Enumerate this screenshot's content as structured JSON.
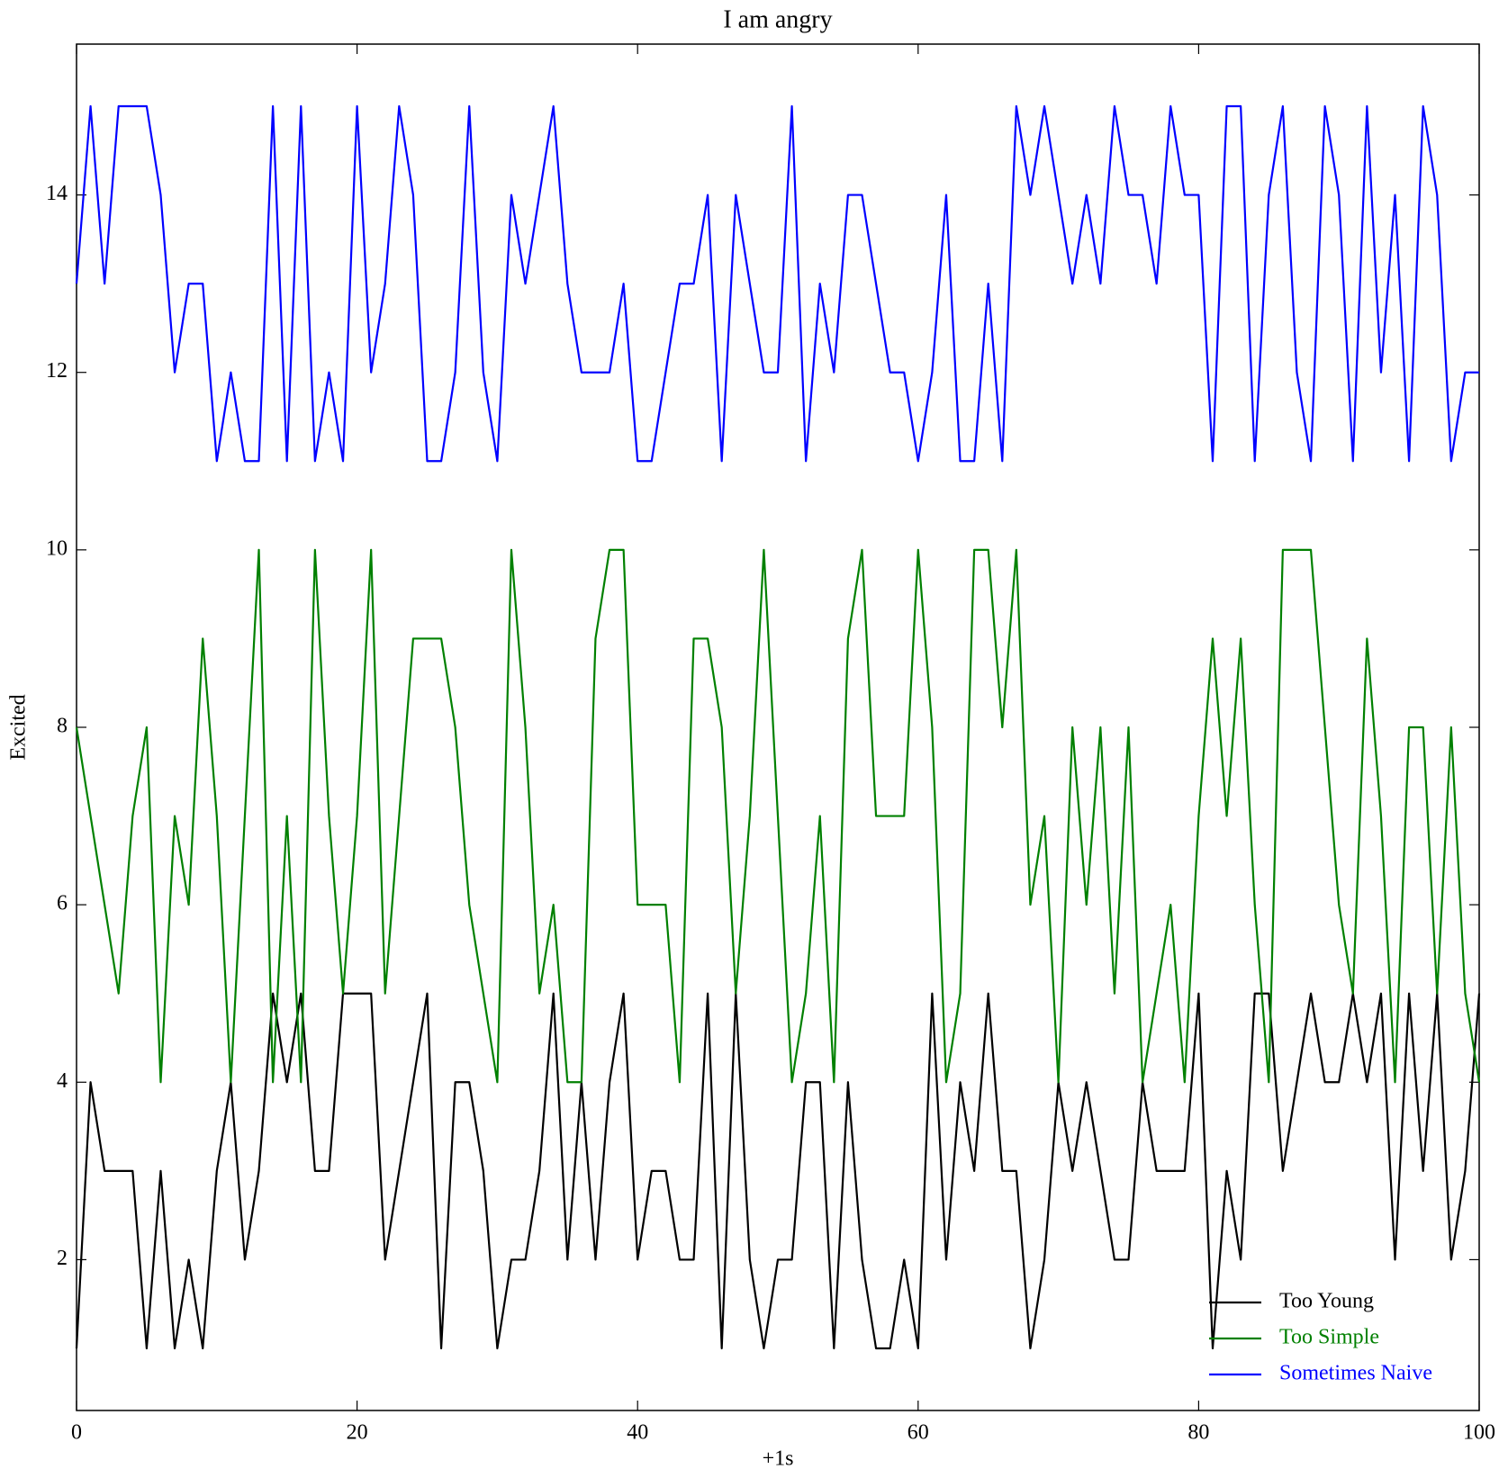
{
  "chart_data": {
    "type": "line",
    "title": "I am angry",
    "x_label": "+1s",
    "y_label": "Excited",
    "x": [
      0,
      1,
      2,
      3,
      4,
      5,
      6,
      7,
      8,
      9,
      10,
      11,
      12,
      13,
      14,
      15,
      16,
      17,
      18,
      19,
      20,
      21,
      22,
      23,
      24,
      25,
      26,
      27,
      28,
      29,
      30,
      31,
      32,
      33,
      34,
      35,
      36,
      37,
      38,
      39,
      40,
      41,
      42,
      43,
      44,
      45,
      46,
      47,
      48,
      49,
      50,
      51,
      52,
      53,
      54,
      55,
      56,
      57,
      58,
      59,
      60,
      61,
      62,
      63,
      64,
      65,
      66,
      67,
      68,
      69,
      70,
      71,
      72,
      73,
      74,
      75,
      76,
      77,
      78,
      79,
      80,
      81,
      82,
      83,
      84,
      85,
      86,
      87,
      88,
      89,
      90,
      91,
      92,
      93,
      94,
      95,
      96,
      97,
      98,
      99,
      100
    ],
    "series": [
      {
        "name": "Too Young",
        "color": "#000000",
        "values": [
          1,
          4,
          3,
          3,
          3,
          1,
          3,
          1,
          2,
          1,
          3,
          4,
          2,
          3,
          5,
          4,
          5,
          3,
          3,
          5,
          5,
          5,
          2,
          3,
          4,
          5,
          1,
          4,
          4,
          3,
          1,
          2,
          2,
          3,
          5,
          2,
          4,
          2,
          4,
          5,
          2,
          3,
          3,
          2,
          2,
          5,
          1,
          5,
          2,
          1,
          2,
          2,
          4,
          4,
          1,
          4,
          2,
          1,
          1,
          2,
          1,
          5,
          2,
          4,
          3,
          5,
          3,
          3,
          1,
          2,
          4,
          3,
          4,
          3,
          2,
          2,
          4,
          3,
          3,
          3,
          5,
          1,
          3,
          2,
          5,
          5,
          3,
          4,
          5,
          4,
          4,
          5,
          4,
          5,
          2,
          5,
          3,
          5,
          2,
          3,
          5
        ]
      },
      {
        "name": "Too Simple",
        "color": "#008000",
        "values": [
          8,
          7,
          6,
          5,
          7,
          8,
          4,
          7,
          6,
          9,
          7,
          4,
          7,
          10,
          4,
          7,
          4,
          10,
          7,
          5,
          7,
          10,
          5,
          7,
          9,
          9,
          9,
          8,
          6,
          5,
          4,
          10,
          8,
          5,
          6,
          4,
          4,
          9,
          10,
          10,
          6,
          6,
          6,
          4,
          9,
          9,
          8,
          5,
          7,
          10,
          7,
          4,
          5,
          7,
          4,
          9,
          10,
          7,
          7,
          7,
          10,
          8,
          4,
          5,
          10,
          10,
          8,
          10,
          6,
          7,
          4,
          8,
          6,
          8,
          5,
          8,
          4,
          5,
          6,
          4,
          7,
          9,
          7,
          9,
          6,
          4,
          10,
          10,
          10,
          8,
          6,
          5,
          9,
          7,
          4,
          8,
          8,
          5,
          8,
          5,
          4
        ]
      },
      {
        "name": "Sometimes Naive",
        "color": "#0000ff",
        "values": [
          13,
          15,
          13,
          15,
          15,
          15,
          14,
          12,
          13,
          13,
          11,
          12,
          11,
          11,
          15,
          11,
          15,
          11,
          12,
          11,
          15,
          12,
          13,
          15,
          14,
          11,
          11,
          12,
          15,
          12,
          11,
          14,
          13,
          14,
          15,
          13,
          12,
          12,
          12,
          13,
          11,
          11,
          12,
          13,
          13,
          14,
          11,
          14,
          13,
          12,
          12,
          15,
          11,
          13,
          12,
          14,
          14,
          13,
          12,
          12,
          11,
          12,
          14,
          11,
          11,
          13,
          11,
          15,
          14,
          15,
          14,
          13,
          14,
          13,
          15,
          14,
          14,
          13,
          15,
          14,
          14,
          11,
          15,
          15,
          11,
          14,
          15,
          12,
          11,
          15,
          14,
          11,
          15,
          12,
          14,
          11,
          15,
          14,
          11,
          12,
          12
        ]
      }
    ],
    "xlim": [
      0,
      100
    ],
    "xticks": [
      0,
      20,
      40,
      60,
      80,
      100
    ],
    "ylim": [
      0.3,
      15.7
    ],
    "yticks": [
      2,
      4,
      6,
      8,
      10,
      12,
      14
    ],
    "legend": "lower right"
  }
}
